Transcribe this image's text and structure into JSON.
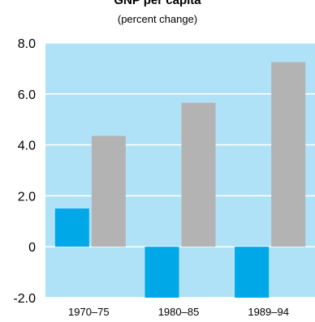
{
  "chart_data": {
    "type": "bar",
    "title": "GNP per capita",
    "subtitle": "(percent change)",
    "categories": [
      "1970–75",
      "1980–85",
      "1989–94"
    ],
    "series": [
      {
        "values": [
          1.5,
          -2.0,
          -2.0
        ],
        "color": "#00a8e8"
      },
      {
        "values": [
          4.35,
          5.65,
          7.25
        ],
        "color": "#b3b3b3"
      }
    ],
    "ylim": [
      -2.0,
      8.0
    ],
    "yticks": [
      "8.0",
      "6.0",
      "4.0",
      "2.0",
      "0",
      "-2.0"
    ],
    "ytick_values": [
      8,
      6,
      4,
      2,
      0,
      -2
    ],
    "grid": true,
    "plot_background": "#b0e2f7",
    "grid_color": "#ffffff",
    "legend": "none"
  }
}
